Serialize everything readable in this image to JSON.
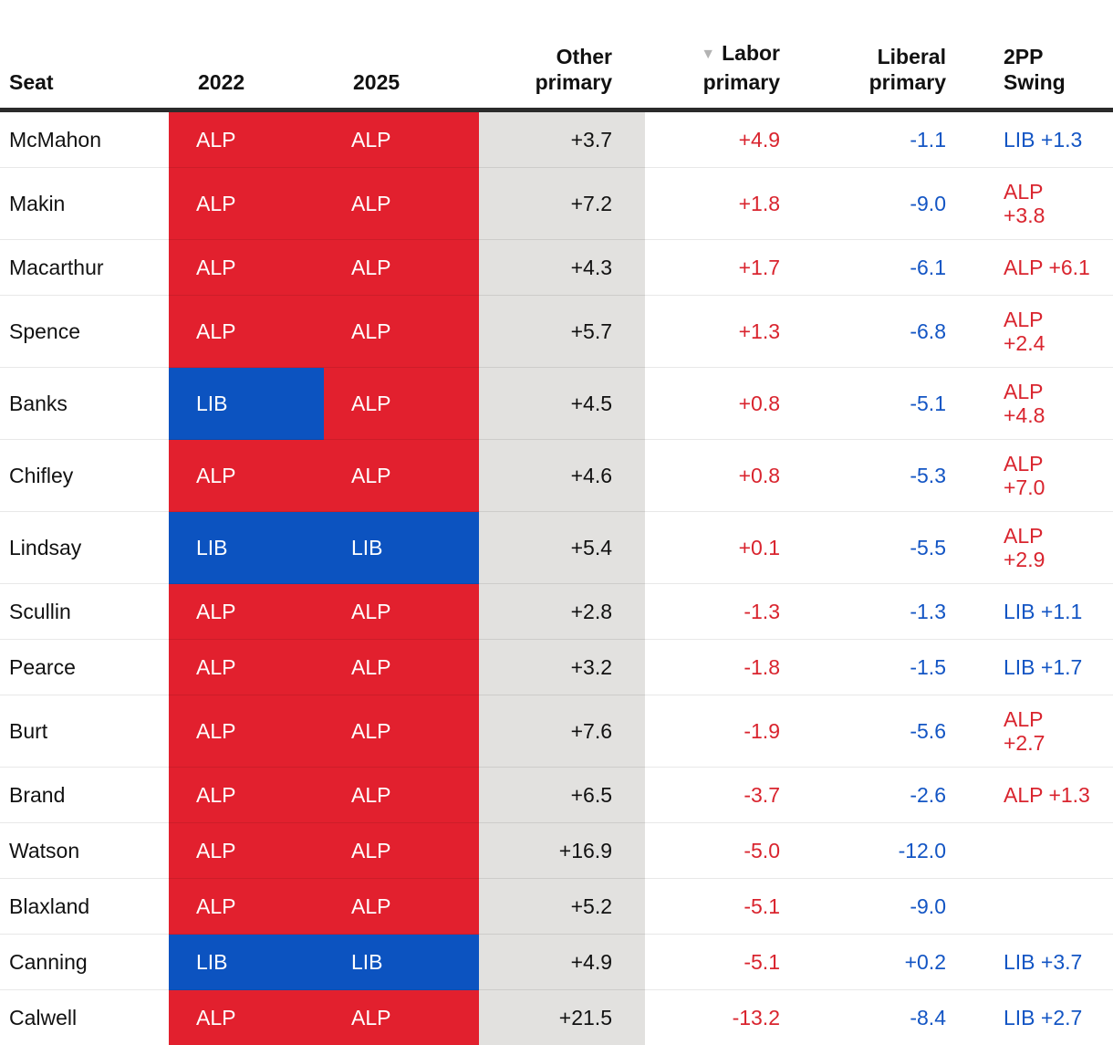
{
  "chart_data": {
    "type": "table",
    "sort": {
      "column": "Labor primary",
      "direction": "descending"
    },
    "columns": [
      {
        "id": "seat",
        "lines": [
          "Seat"
        ]
      },
      {
        "id": "2022",
        "lines": [
          "2022"
        ]
      },
      {
        "id": "2025",
        "lines": [
          "2025"
        ]
      },
      {
        "id": "other",
        "lines": [
          "Other",
          "primary"
        ]
      },
      {
        "id": "labor",
        "lines": [
          "Labor",
          "primary"
        ],
        "sorted": true
      },
      {
        "id": "liberal",
        "lines": [
          "Liberal",
          "primary"
        ]
      },
      {
        "id": "swing",
        "lines": [
          "2PP",
          "Swing"
        ]
      }
    ],
    "rows": [
      {
        "seat": "McMahon",
        "p2022": "ALP",
        "p2025": "ALP",
        "other": "+3.7",
        "labor": "+4.9",
        "liberal": "-1.1",
        "swing": {
          "party": "LIB",
          "lines": [
            "LIB +1.3"
          ]
        }
      },
      {
        "seat": "Makin",
        "p2022": "ALP",
        "p2025": "ALP",
        "other": "+7.2",
        "labor": "+1.8",
        "liberal": "-9.0",
        "swing": {
          "party": "ALP",
          "lines": [
            "ALP",
            "+3.8"
          ]
        }
      },
      {
        "seat": "Macarthur",
        "p2022": "ALP",
        "p2025": "ALP",
        "other": "+4.3",
        "labor": "+1.7",
        "liberal": "-6.1",
        "swing": {
          "party": "ALP",
          "lines": [
            "ALP +6.1"
          ]
        }
      },
      {
        "seat": "Spence",
        "p2022": "ALP",
        "p2025": "ALP",
        "other": "+5.7",
        "labor": "+1.3",
        "liberal": "-6.8",
        "swing": {
          "party": "ALP",
          "lines": [
            "ALP",
            "+2.4"
          ]
        }
      },
      {
        "seat": "Banks",
        "p2022": "LIB",
        "p2025": "ALP",
        "other": "+4.5",
        "labor": "+0.8",
        "liberal": "-5.1",
        "swing": {
          "party": "ALP",
          "lines": [
            "ALP",
            "+4.8"
          ]
        }
      },
      {
        "seat": "Chifley",
        "p2022": "ALP",
        "p2025": "ALP",
        "other": "+4.6",
        "labor": "+0.8",
        "liberal": "-5.3",
        "swing": {
          "party": "ALP",
          "lines": [
            "ALP",
            "+7.0"
          ]
        }
      },
      {
        "seat": "Lindsay",
        "p2022": "LIB",
        "p2025": "LIB",
        "other": "+5.4",
        "labor": "+0.1",
        "liberal": "-5.5",
        "swing": {
          "party": "ALP",
          "lines": [
            "ALP",
            "+2.9"
          ]
        }
      },
      {
        "seat": "Scullin",
        "p2022": "ALP",
        "p2025": "ALP",
        "other": "+2.8",
        "labor": "-1.3",
        "liberal": "-1.3",
        "swing": {
          "party": "LIB",
          "lines": [
            "LIB +1.1"
          ]
        }
      },
      {
        "seat": "Pearce",
        "p2022": "ALP",
        "p2025": "ALP",
        "other": "+3.2",
        "labor": "-1.8",
        "liberal": "-1.5",
        "swing": {
          "party": "LIB",
          "lines": [
            "LIB +1.7"
          ]
        }
      },
      {
        "seat": "Burt",
        "p2022": "ALP",
        "p2025": "ALP",
        "other": "+7.6",
        "labor": "-1.9",
        "liberal": "-5.6",
        "swing": {
          "party": "ALP",
          "lines": [
            "ALP",
            "+2.7"
          ]
        }
      },
      {
        "seat": "Brand",
        "p2022": "ALP",
        "p2025": "ALP",
        "other": "+6.5",
        "labor": "-3.7",
        "liberal": "-2.6",
        "swing": {
          "party": "ALP",
          "lines": [
            "ALP +1.3"
          ]
        }
      },
      {
        "seat": "Watson",
        "p2022": "ALP",
        "p2025": "ALP",
        "other": "+16.9",
        "labor": "-5.0",
        "liberal": "-12.0",
        "swing": null
      },
      {
        "seat": "Blaxland",
        "p2022": "ALP",
        "p2025": "ALP",
        "other": "+5.2",
        "labor": "-5.1",
        "liberal": "-9.0",
        "swing": null
      },
      {
        "seat": "Canning",
        "p2022": "LIB",
        "p2025": "LIB",
        "other": "+4.9",
        "labor": "-5.1",
        "liberal": "+0.2",
        "swing": {
          "party": "LIB",
          "lines": [
            "LIB +3.7"
          ]
        }
      },
      {
        "seat": "Calwell",
        "p2022": "ALP",
        "p2025": "ALP",
        "other": "+21.5",
        "labor": "-13.2",
        "liberal": "-8.4",
        "swing": {
          "party": "LIB",
          "lines": [
            "LIB +2.7"
          ]
        }
      }
    ]
  },
  "icons": {
    "sort_desc": "▼"
  },
  "colors": {
    "alp_background": "#e2202e",
    "lib_background": "#0c53c0",
    "labor_text": "#d9242e",
    "liberal_text": "#1355c4",
    "other_column_background": "#e2e1df",
    "header_rule": "#2b2b2b",
    "sort_arrow": "#b3b3b3"
  }
}
